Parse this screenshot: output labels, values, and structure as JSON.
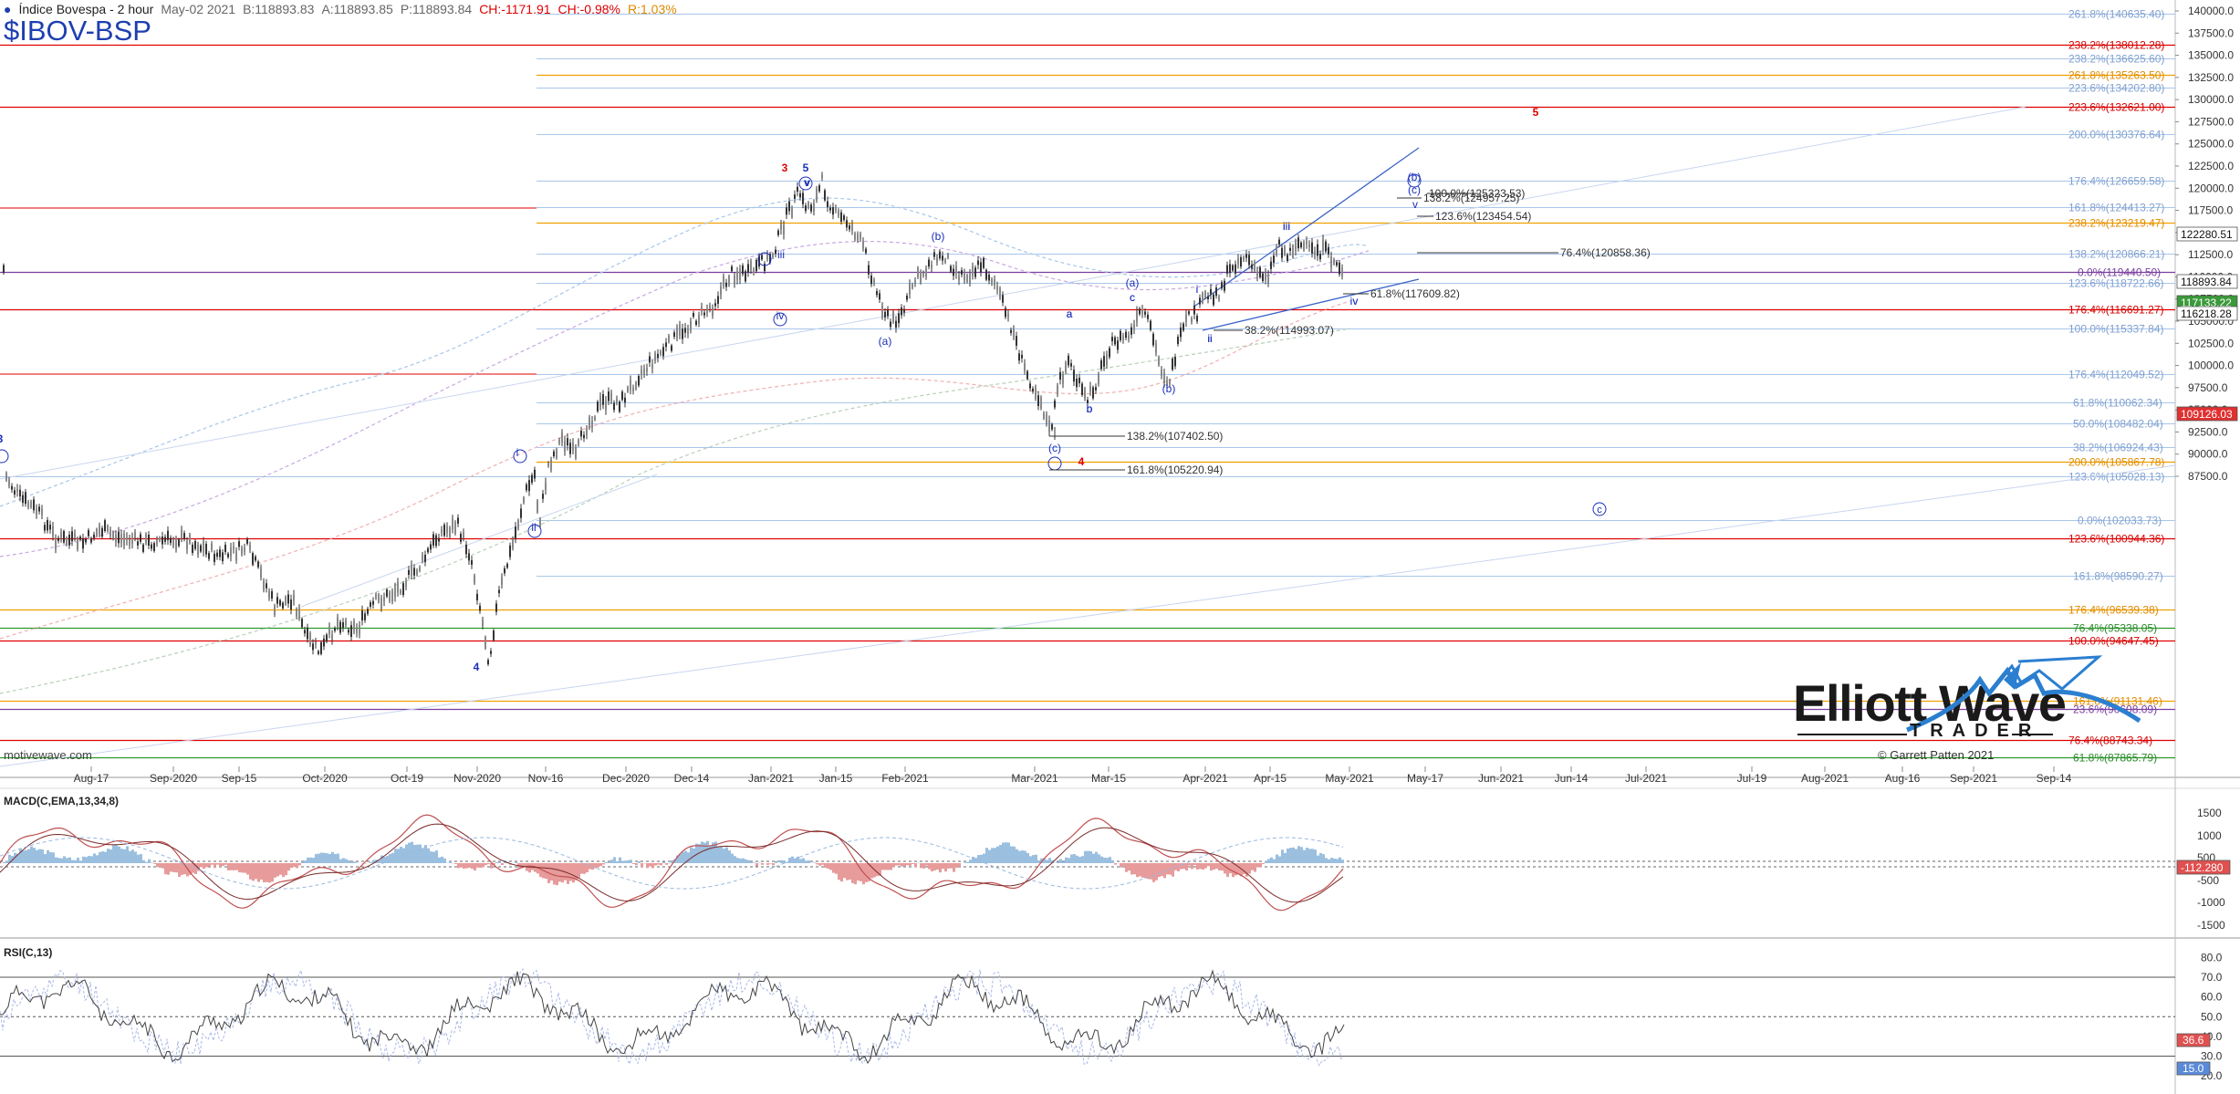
{
  "header": {
    "instrument": "Índice Bovespa - 2 hour",
    "date": "May-02 2021",
    "bid": "B:118893.83",
    "ask": "A:118893.85",
    "price": "P:118893.84",
    "ch": "CH:-1171.91",
    "chpct": "CH:-0.98%",
    "range": "R:1.03%"
  },
  "symbol": "$IBOV-BSP",
  "colors": {
    "candle": "#333333",
    "wave_blue": "#1a2fb8",
    "wave_red": "#e00000",
    "fib_blue": "#a9c6ea",
    "fib_red": "#e00000",
    "fib_orange": "#f0a000",
    "fib_green": "#2a9a2a",
    "fib_purple": "#7a3fa0",
    "macd_pos": "#9bbfdf",
    "macd_neg": "#e79b9b"
  },
  "x_axis_labels": [
    "Aug-17",
    "Sep-2020",
    "Sep-15",
    "Oct-2020",
    "Oct-19",
    "Nov-2020",
    "Nov-16",
    "Dec-2020",
    "Dec-14",
    "Jan-2021",
    "Jan-15",
    "Feb-2021",
    "Mar-2021",
    "Mar-15",
    "Apr-2021",
    "Apr-15",
    "May-2021",
    "May-17",
    "Jun-2021",
    "Jun-14",
    "Jul-2021",
    "Jul-19",
    "Aug-2021",
    "Aug-16",
    "Sep-2021",
    "Sep-14"
  ],
  "y_axis_main": [
    "140000.0",
    "137500.0",
    "135000.0",
    "132500.0",
    "130000.0",
    "127500.0",
    "125000.0",
    "122500.0",
    "120000.0",
    "117500.0",
    "115000.0",
    "112500.0",
    "110000.0",
    "107500.0",
    "105000.0",
    "102500.0",
    "100000.0",
    "97500.0",
    "95000.0",
    "92500.0",
    "90000.0",
    "87500.0"
  ],
  "price_boxes": [
    {
      "text": "122280.51",
      "type": "white"
    },
    {
      "text": "118893.84",
      "type": "white"
    },
    {
      "text": "117133.22",
      "type": "green"
    },
    {
      "text": "116218.28",
      "type": "white"
    },
    {
      "text": "109126.03",
      "type": "red"
    }
  ],
  "fib_levels": [
    {
      "label": "261.8%(140635.40)",
      "color": "blue"
    },
    {
      "label": "238.2%(138012.28)",
      "color": "red"
    },
    {
      "label": "238.2%(136625.60)",
      "color": "blue"
    },
    {
      "label": "261.8%(135263.50)",
      "color": "orange"
    },
    {
      "label": "223.6%(134202.80)",
      "color": "blue"
    },
    {
      "label": "223.6%(132621.00)",
      "color": "red"
    },
    {
      "label": "200.0%(130376.64)",
      "color": "blue"
    },
    {
      "label": "176.4%(126659.58)",
      "color": "blue"
    },
    {
      "label": "161.8%(124413.27)",
      "color": "blue"
    },
    {
      "label": "238.2%(123219.47)",
      "color": "orange"
    },
    {
      "label": "138.2%(120866.21)",
      "color": "blue"
    },
    {
      "label": "0.0%(119440.50)",
      "color": "purple"
    },
    {
      "label": "123.6%(118722.66)",
      "color": "blue"
    },
    {
      "label": "176.4%(116691.27)",
      "color": "red"
    },
    {
      "label": "100.0%(115337.84)",
      "color": "blue"
    },
    {
      "label": "176.4%(112049.52)",
      "color": "blue"
    },
    {
      "label": "61.8%(110062.34)",
      "color": "blue"
    },
    {
      "label": "50.0%(108482.04)",
      "color": "blue"
    },
    {
      "label": "38.2%(106924.43)",
      "color": "blue"
    },
    {
      "label": "200.0%(105867.78)",
      "color": "orange"
    },
    {
      "label": "123.6%(105028.13)",
      "color": "blue"
    },
    {
      "label": "0.0%(102033.73)",
      "color": "blue"
    },
    {
      "label": "123.6%(100944.36)",
      "color": "red"
    },
    {
      "label": "161.8%(98590.27)",
      "color": "blue"
    },
    {
      "label": "176.4%(96539.38)",
      "color": "orange"
    },
    {
      "label": "76.4%(95338.05)",
      "color": "green"
    },
    {
      "label": "100.0%(94647.45)",
      "color": "red"
    },
    {
      "label": "161.8%(91131.46)",
      "color": "orange"
    },
    {
      "label": "23.6%(90608.09)",
      "color": "purple"
    },
    {
      "label": "76.4%(88743.34)",
      "color": "red"
    },
    {
      "label": "61.8%(87865.79)",
      "color": "green"
    }
  ],
  "chart_annotations": [
    {
      "text": "138.2%(124957.25)"
    },
    {
      "text": "100.0%(125323.53)"
    },
    {
      "text": "123.6%(123454.54)"
    },
    {
      "text": "76.4%(120858.36)"
    },
    {
      "text": "61.8%(117609.82)"
    },
    {
      "text": "38.2%(114993.07)"
    },
    {
      "text": "138.2%(107402.50)"
    },
    {
      "text": "161.8%(105220.94)"
    }
  ],
  "wave_labels": [
    {
      "text": "3",
      "color": "red"
    },
    {
      "text": "5",
      "color": "blue"
    },
    {
      "text": "v",
      "color": "blue"
    },
    {
      "text": "iii",
      "color": "blue"
    },
    {
      "text": "iv",
      "color": "blue"
    },
    {
      "text": "i",
      "color": "blue"
    },
    {
      "text": "ii",
      "color": "blue"
    },
    {
      "text": "(a)",
      "color": "blue"
    },
    {
      "text": "(b)",
      "color": "blue"
    },
    {
      "text": "(c)",
      "color": "blue"
    },
    {
      "text": "a",
      "color": "blue"
    },
    {
      "text": "b",
      "color": "blue"
    },
    {
      "text": "c",
      "color": "blue"
    },
    {
      "text": "4",
      "color": "red"
    },
    {
      "text": "4",
      "color": "blue"
    },
    {
      "text": "5",
      "color": "red"
    },
    {
      "text": "a",
      "color": "blue"
    },
    {
      "text": "c",
      "color": "blue"
    },
    {
      "text": "b",
      "color": "blue"
    },
    {
      "text": "(b)",
      "color": "blue"
    },
    {
      "text": "i",
      "color": "blue"
    },
    {
      "text": "ii",
      "color": "blue"
    },
    {
      "text": "iii",
      "color": "blue"
    },
    {
      "text": "iv",
      "color": "blue"
    },
    {
      "text": "v",
      "color": "blue"
    },
    {
      "text": "(a)",
      "color": "blue"
    },
    {
      "text": "(b)",
      "color": "blue"
    },
    {
      "text": "(c)",
      "color": "blue"
    },
    {
      "text": "iii",
      "color": "blue"
    },
    {
      "text": "iv",
      "color": "blue"
    },
    {
      "text": "v",
      "color": "blue"
    },
    {
      "text": "i",
      "color": "blue"
    },
    {
      "text": "ii",
      "color": "blue"
    },
    {
      "text": "3",
      "color": "blue"
    },
    {
      "text": "b",
      "color": "blue"
    }
  ],
  "logo": {
    "title": "Elliott Wave",
    "subtitle": "TRADER",
    "copyright": "© Garrett Patten 2021"
  },
  "watermark": "motivewave.com",
  "macd": {
    "title": "MACD(C,EMA,13,34,8)",
    "axis": [
      "1500",
      "1000",
      "500",
      "-500",
      "-1000",
      "-1500"
    ],
    "value_box": "-112.280"
  },
  "rsi": {
    "title": "RSI(C,13)",
    "axis": [
      "80.0",
      "70.0",
      "60.0",
      "50.0",
      "40.0",
      "30.0",
      "20.0"
    ],
    "value_boxes": [
      "36.6",
      "15.0"
    ]
  }
}
